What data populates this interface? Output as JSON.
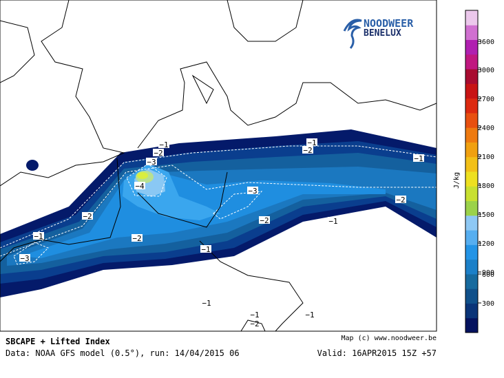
{
  "logo": {
    "line1": "NOODWEER",
    "line2": "BENELUX"
  },
  "colorbar": {
    "unit": "J/kg",
    "labels": [
      "3600",
      "3000",
      "2700",
      "2400",
      "2100",
      "1800",
      "1500",
      "1200",
      "900",
      "600",
      "300"
    ]
  },
  "contour_labels": [
    "−1",
    "−2",
    "−3",
    "−4",
    "−1",
    "−2",
    "−1",
    "−3",
    "−2",
    "−2",
    "−2",
    "−1",
    "−1",
    "−2",
    "−1",
    "−3",
    "−1",
    "−1",
    "−2",
    "−1"
  ],
  "footer": {
    "title": "SBCAPE + Lifted Index",
    "data": "Data: NOAA GFS model (0.5°), run: 14/04/2015 06",
    "credit": "Map (c) www.noodweer.be",
    "valid": "Valid: 16APR2015 15Z +57"
  }
}
